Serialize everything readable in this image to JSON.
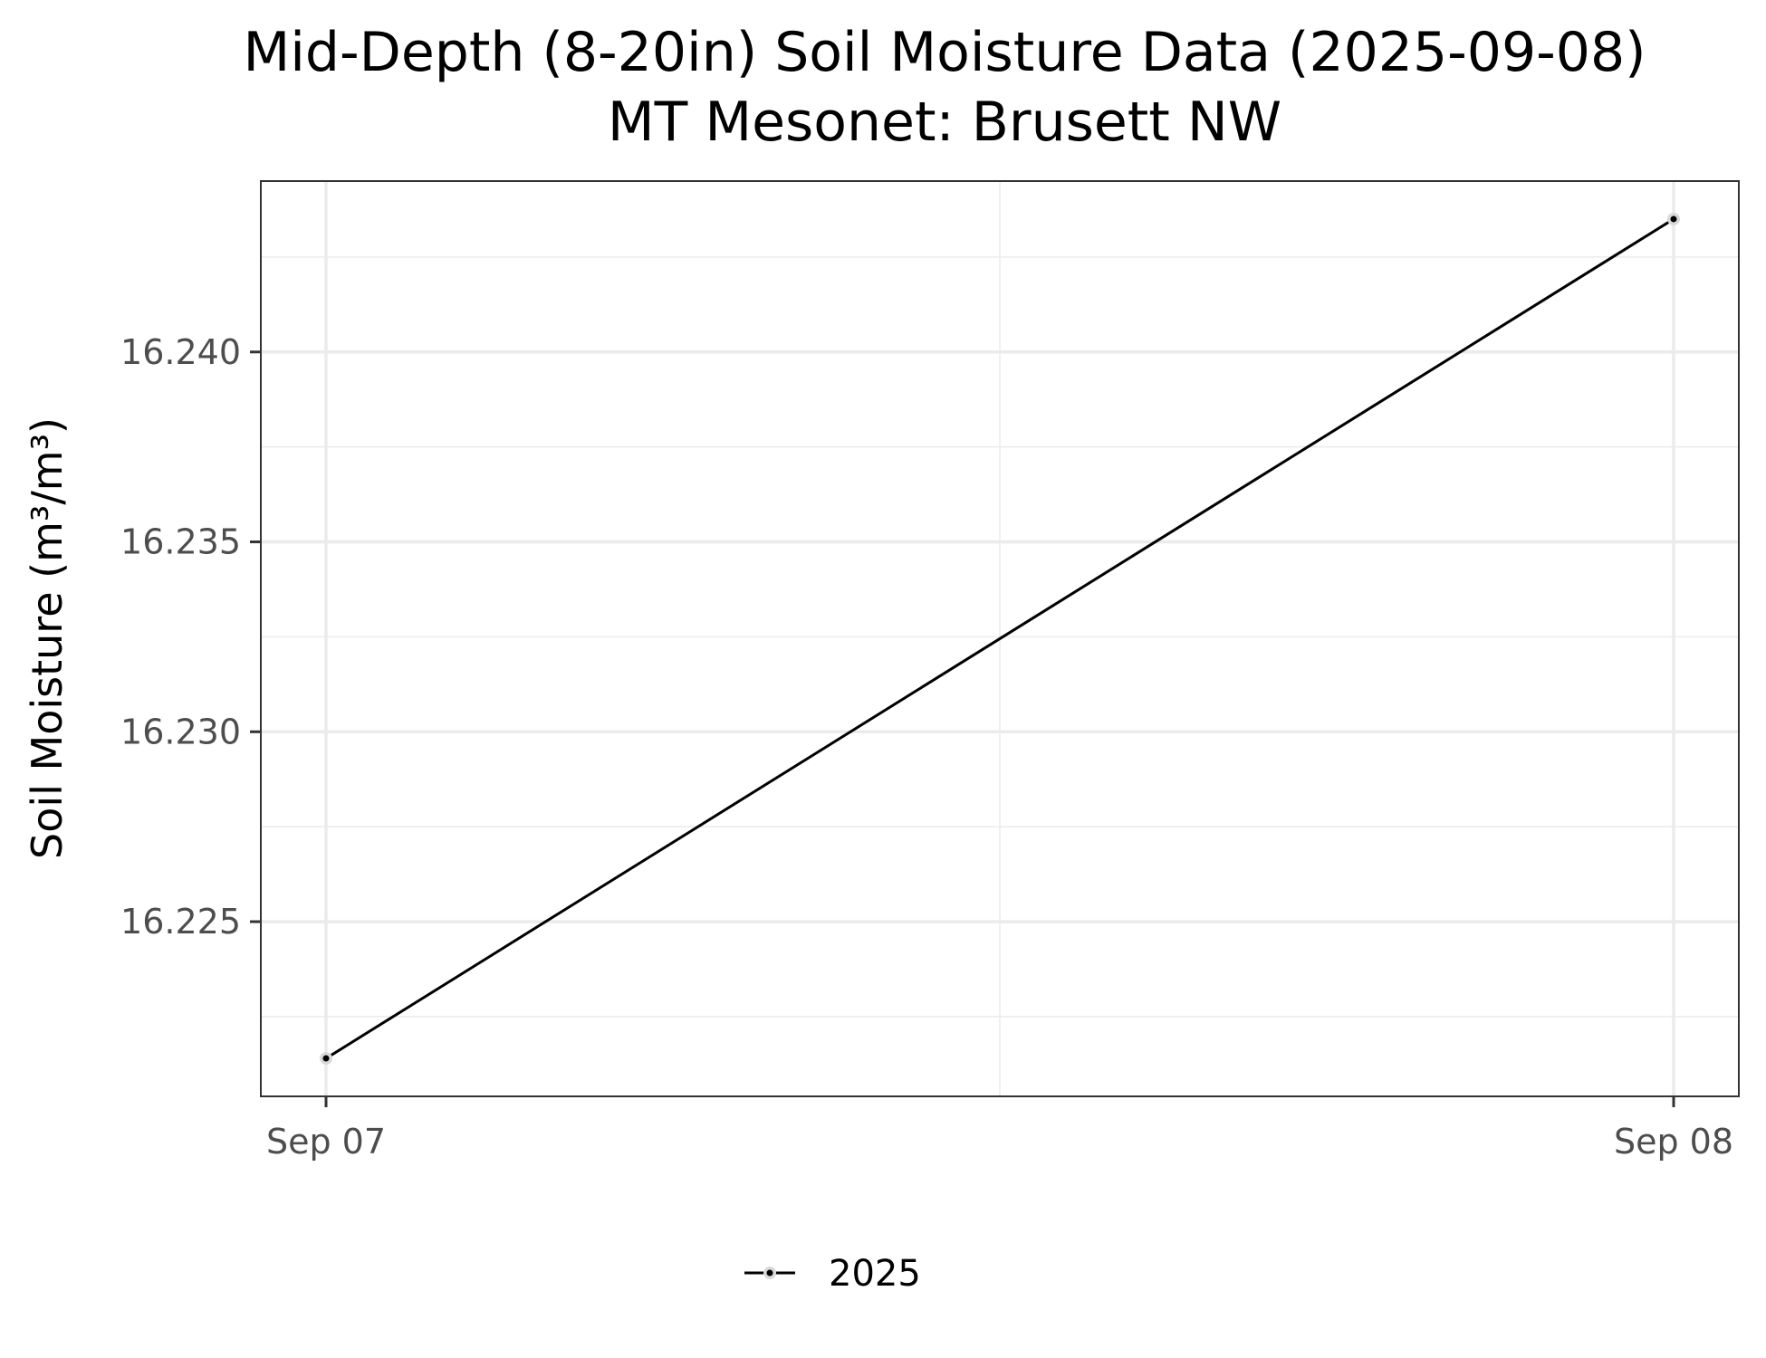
{
  "chart_data": {
    "type": "line",
    "title": "Mid-Depth (8-20in) Soil Moisture Data (2025-09-08)",
    "subtitle": "MT Mesonet: Brusett NW",
    "xlabel": "",
    "ylabel": "Soil Moisture (m³/m³)",
    "x": [
      "2025-09-07",
      "2025-09-08"
    ],
    "x_tick_labels": [
      "Sep 07",
      "Sep 08"
    ],
    "y_ticks": [
      16.225,
      16.23,
      16.235,
      16.24
    ],
    "y_tick_labels": [
      "16.225",
      "16.230",
      "16.235",
      "16.240"
    ],
    "ylim": [
      16.2204,
      16.2445
    ],
    "grid": true,
    "legend_position": "bottom",
    "series": [
      {
        "name": "2025",
        "values": [
          16.2214,
          16.2435
        ],
        "color": "#000000"
      }
    ]
  }
}
